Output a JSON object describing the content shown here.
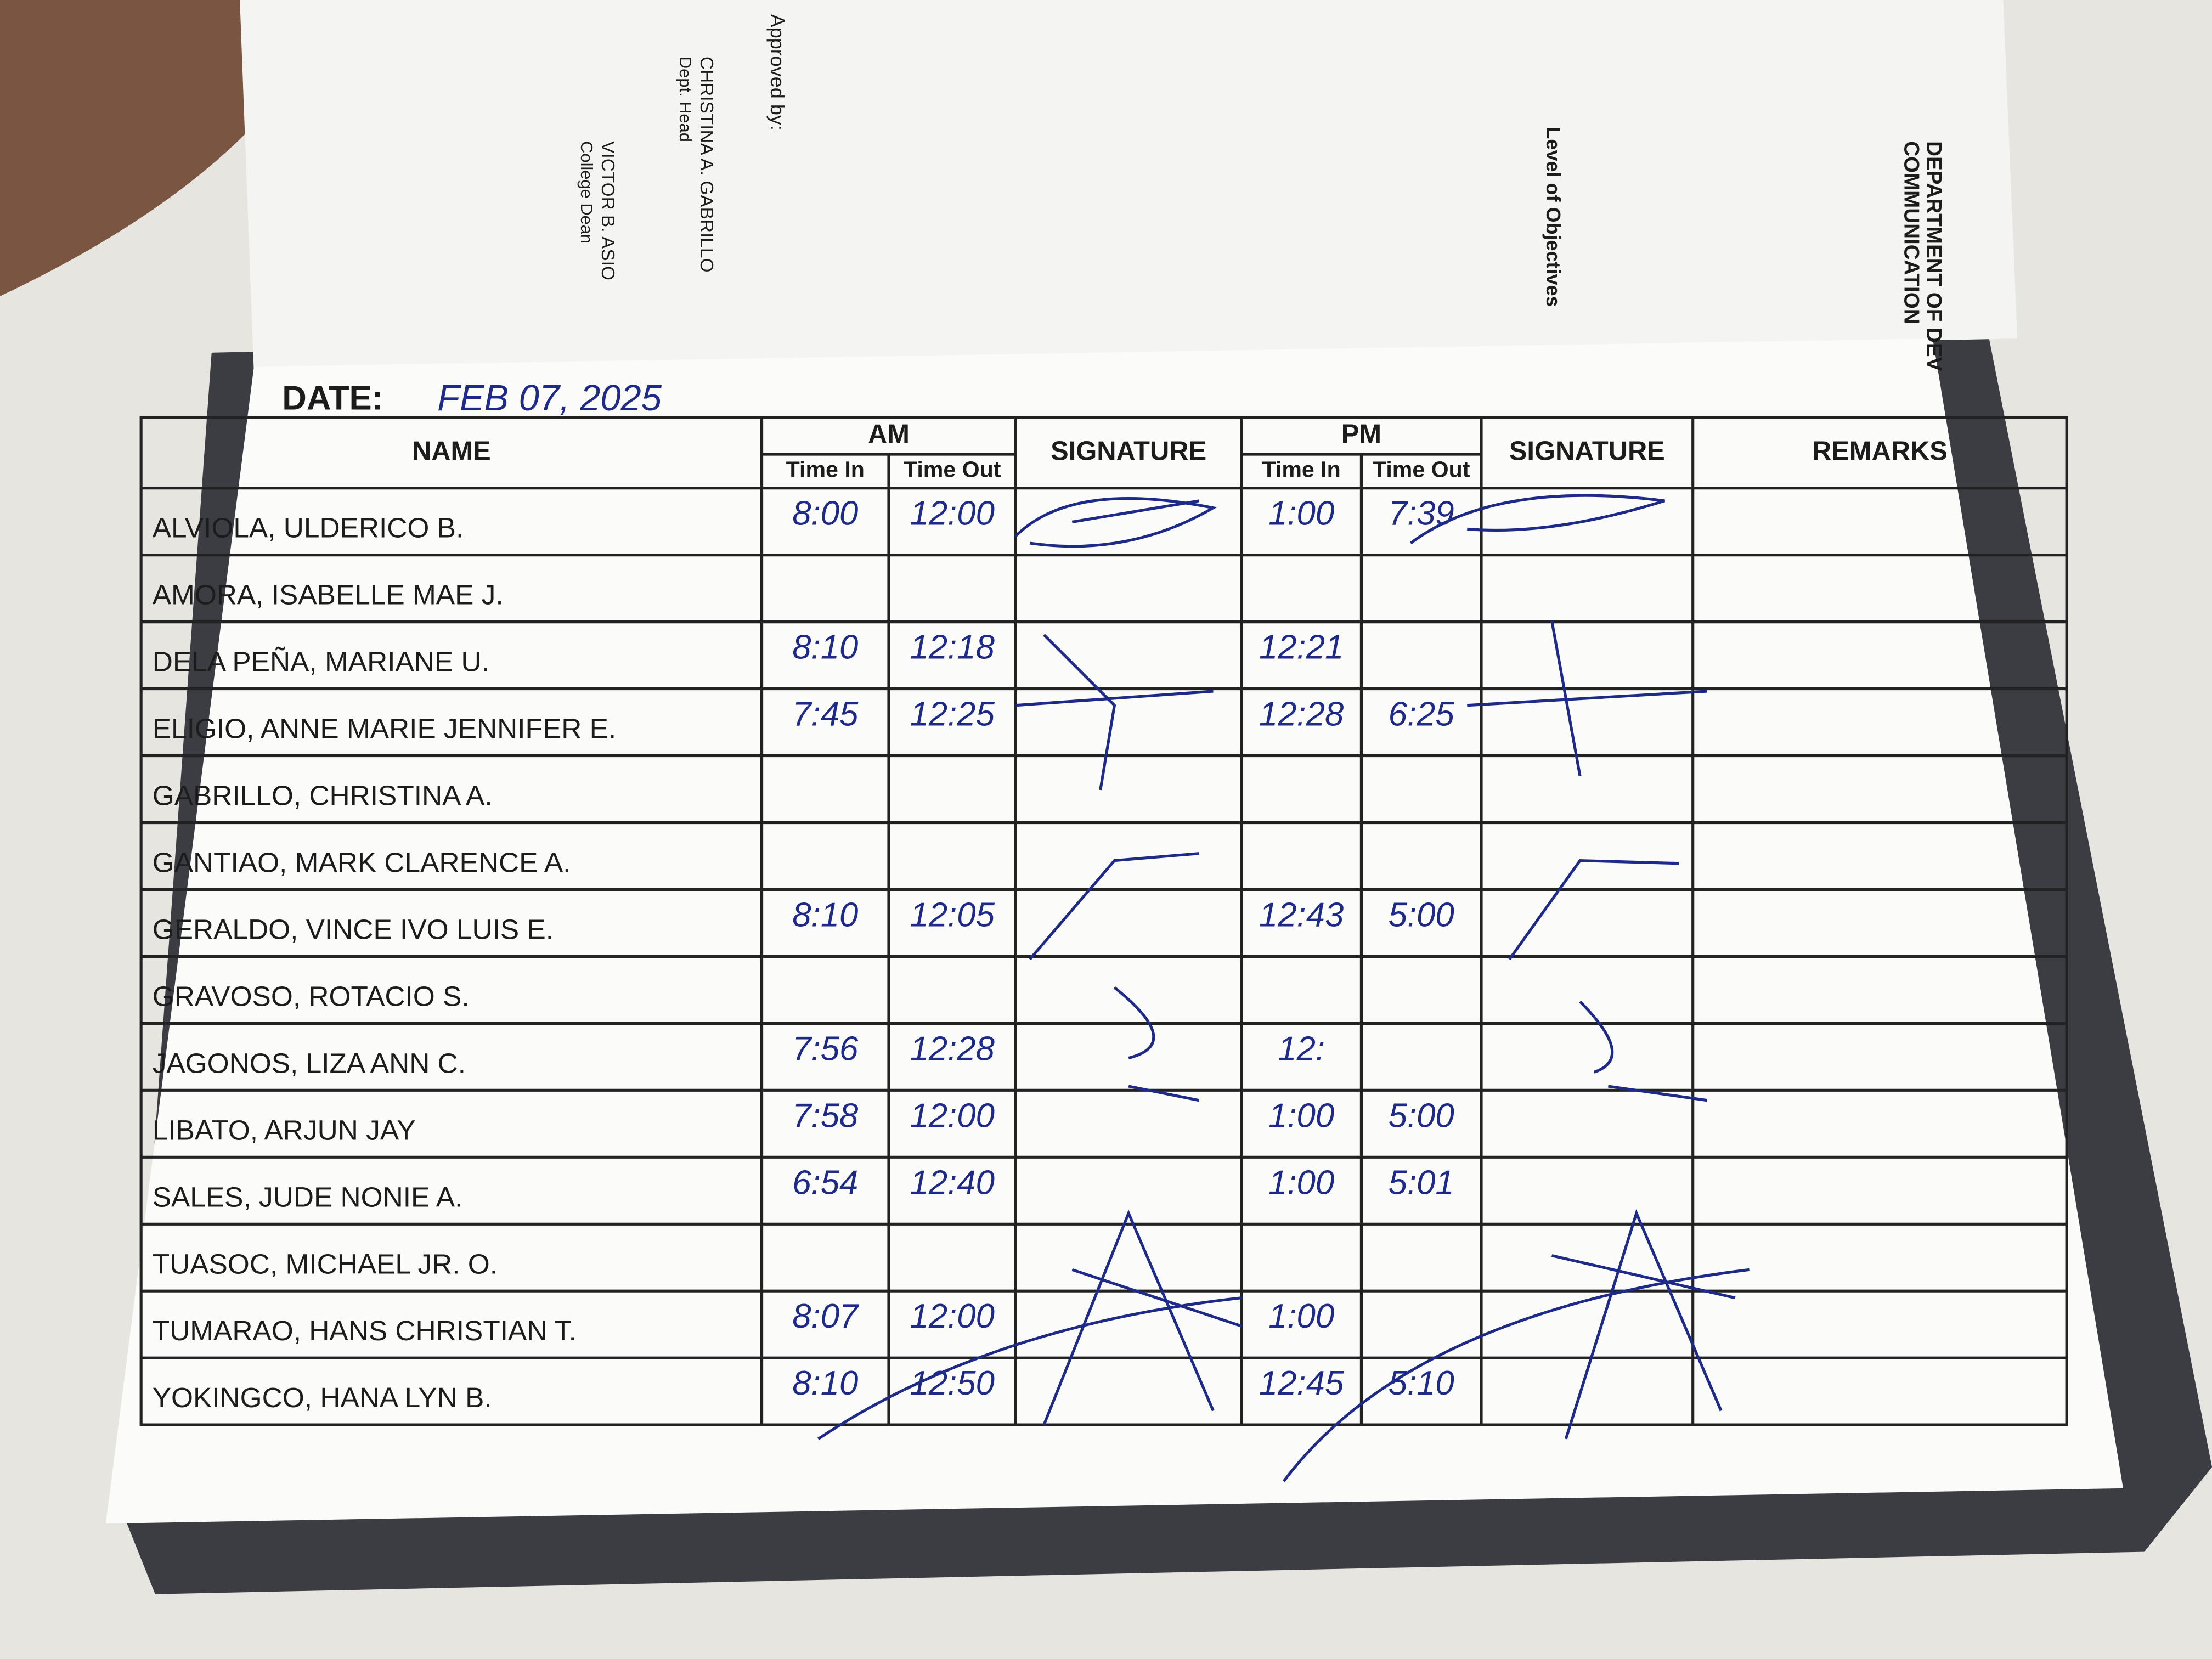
{
  "top_page": {
    "department": "DEPARTMENT OF DEV",
    "unit": "COMMUNICATION",
    "section": "Level of Objectives",
    "approved_by": "Approved by:",
    "signatories": [
      {
        "name": "CHRISTINA A. GABRILLO",
        "role": "Dept. Head"
      },
      {
        "name": "VICTOR B. ASIO",
        "role": "College Dean"
      }
    ]
  },
  "sheet": {
    "date_label": "DATE:",
    "date": "FEB 07, 2025"
  },
  "table": {
    "headers": {
      "name": "NAME",
      "am": "AM",
      "am_in": "Time In",
      "am_out": "Time Out",
      "am_signature": "SIGNATURE",
      "pm": "PM",
      "pm_in": "Time In",
      "pm_out": "Time Out",
      "pm_signature": "SIGNATURE",
      "remarks": "REMARKS"
    },
    "rows": [
      [
        "ALVIOLA, ULDERICO B.",
        "8:00",
        "12:00",
        "1:00",
        "7:39"
      ],
      [
        "AMORA, ISABELLE MAE J.",
        null,
        null,
        null,
        null
      ],
      [
        "DELA PEÑA, MARIANE U.",
        "8:10",
        "12:18",
        "12:21",
        null
      ],
      [
        "ELIGIO, ANNE MARIE JENNIFER E.",
        "7:45",
        "12:25",
        "12:28",
        "6:25"
      ],
      [
        "GABRILLO, CHRISTINA A.",
        null,
        null,
        null,
        null
      ],
      [
        "GANTIAO, MARK CLARENCE A.",
        null,
        null,
        null,
        null
      ],
      [
        "GERALDO, VINCE IVO LUIS E.",
        "8:10",
        "12:05",
        "12:43",
        "5:00"
      ],
      [
        "GRAVOSO, ROTACIO S.",
        null,
        null,
        null,
        null
      ],
      [
        "JAGONOS, LIZA ANN C.",
        "7:56",
        "12:28",
        "12:",
        null
      ],
      [
        "LIBATO, ARJUN JAY",
        "7:58",
        "12:00",
        "1:00",
        "5:00"
      ],
      [
        "SALES, JUDE NONIE A.",
        "6:54",
        "12:40",
        "1:00",
        "5:01"
      ],
      [
        "TUASOC, MICHAEL JR. O.",
        null,
        null,
        null,
        null
      ],
      [
        "TUMARAO, HANS CHRISTIAN T.",
        "8:07",
        "12:00",
        "1:00",
        null
      ],
      [
        "YOKINGCO, HANA LYN B.",
        "8:10",
        "12:50",
        "12:45",
        "5:10"
      ]
    ]
  }
}
